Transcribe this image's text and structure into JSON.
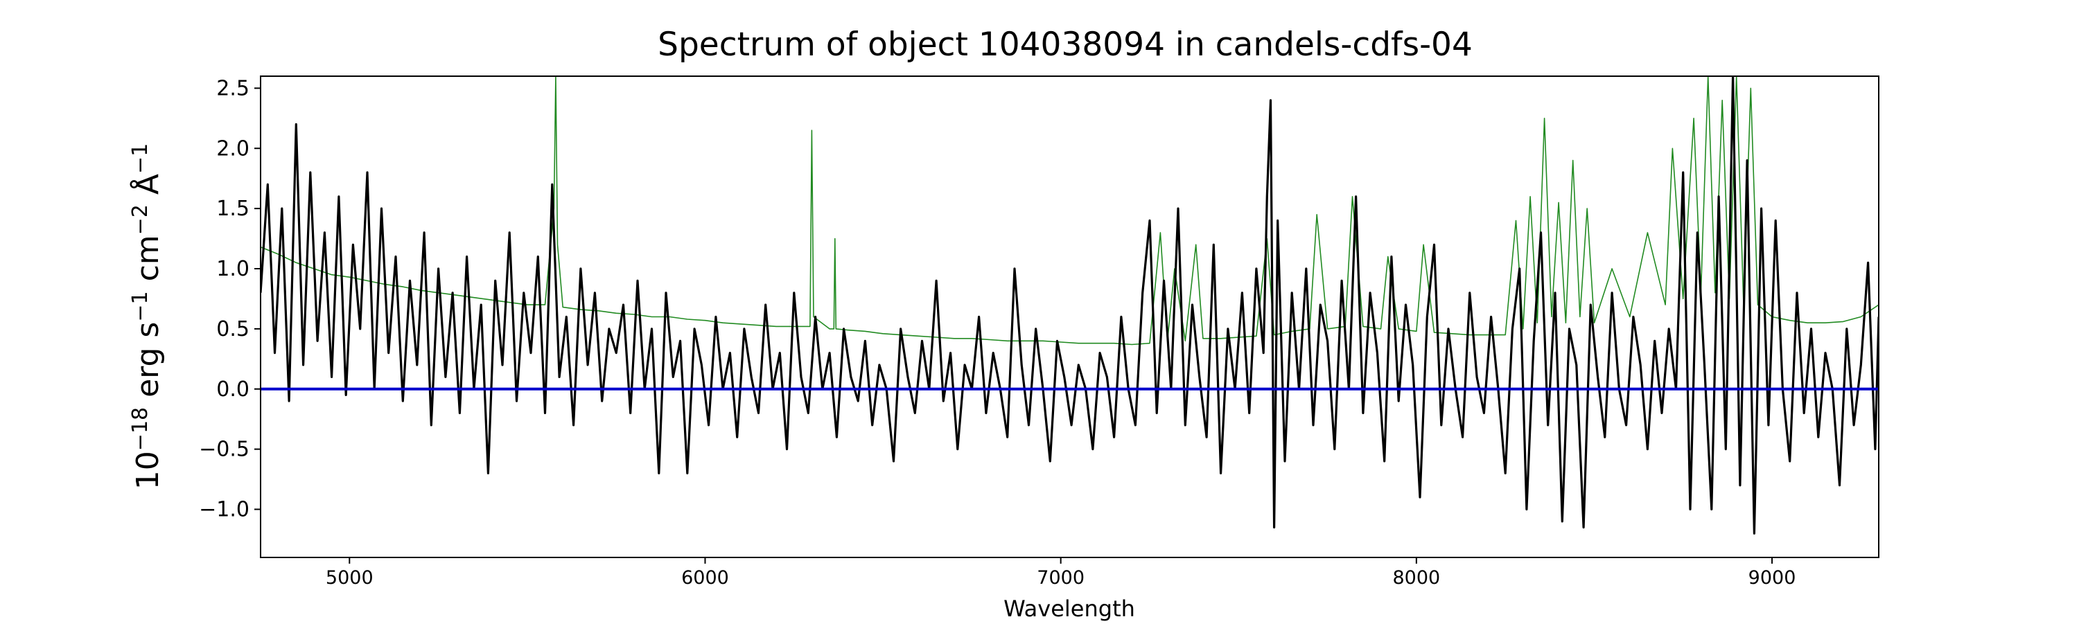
{
  "chart_data": {
    "type": "line",
    "title": "Spectrum of object 104038094 in candels-cdfs-04",
    "xlabel": "Wavelength",
    "ylabel": {
      "parts": [
        {
          "t": "10",
          "sup": false
        },
        {
          "t": "−18",
          "sup": true
        },
        {
          "t": " erg s",
          "sup": false
        },
        {
          "t": "−1",
          "sup": true
        },
        {
          "t": " cm",
          "sup": false
        },
        {
          "t": "−2",
          "sup": true
        },
        {
          "t": " Å",
          "sup": false
        },
        {
          "t": "−1",
          "sup": true
        }
      ]
    },
    "xlim": [
      4750,
      9300
    ],
    "ylim": [
      -1.4,
      2.6
    ],
    "xticks": [
      5000,
      6000,
      7000,
      8000,
      9000
    ],
    "xtick_labels": [
      "5000",
      "6000",
      "7000",
      "8000",
      "9000"
    ],
    "yticks": [
      -1.0,
      -0.5,
      0.0,
      0.5,
      1.0,
      1.5,
      2.0,
      2.5
    ],
    "ytick_labels": [
      "−1.0",
      "−0.5",
      "0.0",
      "0.5",
      "1.0",
      "1.5",
      "2.0",
      "2.5"
    ],
    "grid": false,
    "legend": "none",
    "series": [
      {
        "role": "error",
        "color": "#228b22",
        "x": [
          4750,
          4800,
          4850,
          4900,
          4950,
          5000,
          5050,
          5100,
          5150,
          5200,
          5250,
          5300,
          5350,
          5400,
          5450,
          5500,
          5550,
          5575,
          5580,
          5585,
          5600,
          5650,
          5700,
          5750,
          5800,
          5850,
          5900,
          5950,
          6000,
          6050,
          6100,
          6150,
          6200,
          6250,
          6295,
          6300,
          6305,
          6350,
          6362,
          6365,
          6368,
          6400,
          6450,
          6500,
          6550,
          6600,
          6650,
          6700,
          6750,
          6800,
          6850,
          6900,
          6950,
          7000,
          7050,
          7100,
          7150,
          7200,
          7250,
          7280,
          7300,
          7320,
          7350,
          7380,
          7400,
          7450,
          7500,
          7550,
          7580,
          7600,
          7650,
          7700,
          7720,
          7750,
          7800,
          7820,
          7850,
          7900,
          7920,
          7950,
          8000,
          8020,
          8050,
          8100,
          8150,
          8200,
          8250,
          8280,
          8300,
          8320,
          8340,
          8360,
          8380,
          8400,
          8420,
          8440,
          8460,
          8480,
          8500,
          8550,
          8600,
          8650,
          8700,
          8720,
          8750,
          8780,
          8800,
          8820,
          8840,
          8860,
          8880,
          8900,
          8920,
          8940,
          8960,
          9000,
          9050,
          9100,
          9150,
          9200,
          9250,
          9300
        ],
        "y": [
          1.18,
          1.12,
          1.05,
          1.0,
          0.95,
          0.93,
          0.9,
          0.87,
          0.85,
          0.82,
          0.8,
          0.78,
          0.76,
          0.74,
          0.72,
          0.7,
          0.7,
          1.5,
          2.6,
          1.2,
          0.68,
          0.66,
          0.65,
          0.63,
          0.62,
          0.6,
          0.6,
          0.58,
          0.57,
          0.55,
          0.54,
          0.53,
          0.52,
          0.52,
          0.52,
          2.15,
          0.6,
          0.5,
          0.5,
          1.25,
          0.5,
          0.49,
          0.48,
          0.46,
          0.45,
          0.44,
          0.43,
          0.42,
          0.42,
          0.41,
          0.4,
          0.4,
          0.4,
          0.39,
          0.38,
          0.38,
          0.38,
          0.37,
          0.38,
          1.3,
          0.4,
          1.0,
          0.4,
          1.2,
          0.42,
          0.42,
          0.43,
          0.44,
          1.25,
          0.45,
          0.48,
          0.5,
          1.45,
          0.5,
          0.52,
          1.6,
          0.52,
          0.5,
          1.1,
          0.5,
          0.48,
          1.2,
          0.47,
          0.46,
          0.45,
          0.45,
          0.45,
          1.4,
          0.5,
          1.6,
          0.55,
          2.25,
          0.6,
          1.55,
          0.55,
          1.9,
          0.6,
          1.5,
          0.55,
          1.0,
          0.6,
          1.3,
          0.7,
          2.0,
          0.75,
          2.25,
          0.8,
          2.6,
          0.8,
          2.4,
          0.75,
          2.6,
          0.7,
          2.5,
          0.7,
          0.6,
          0.57,
          0.55,
          0.55,
          0.56,
          0.6,
          0.7
        ]
      },
      {
        "role": "flux",
        "color": "#000000",
        "x": [
          4750,
          4770,
          4790,
          4810,
          4830,
          4850,
          4870,
          4890,
          4910,
          4930,
          4950,
          4970,
          4990,
          5010,
          5030,
          5050,
          5070,
          5090,
          5110,
          5130,
          5150,
          5170,
          5190,
          5210,
          5230,
          5250,
          5270,
          5290,
          5310,
          5330,
          5350,
          5370,
          5390,
          5410,
          5430,
          5450,
          5470,
          5490,
          5510,
          5530,
          5550,
          5570,
          5590,
          5610,
          5630,
          5650,
          5670,
          5690,
          5710,
          5730,
          5750,
          5770,
          5790,
          5810,
          5830,
          5850,
          5870,
          5890,
          5910,
          5930,
          5950,
          5970,
          5990,
          6010,
          6030,
          6050,
          6070,
          6090,
          6110,
          6130,
          6150,
          6170,
          6190,
          6210,
          6230,
          6250,
          6270,
          6290,
          6310,
          6330,
          6350,
          6370,
          6390,
          6410,
          6430,
          6450,
          6470,
          6490,
          6510,
          6530,
          6550,
          6570,
          6590,
          6610,
          6630,
          6650,
          6670,
          6690,
          6710,
          6730,
          6750,
          6770,
          6790,
          6810,
          6830,
          6850,
          6870,
          6890,
          6910,
          6930,
          6950,
          6970,
          6990,
          7010,
          7030,
          7050,
          7070,
          7090,
          7110,
          7130,
          7150,
          7170,
          7190,
          7210,
          7230,
          7250,
          7270,
          7290,
          7310,
          7330,
          7350,
          7370,
          7390,
          7410,
          7430,
          7450,
          7470,
          7490,
          7510,
          7530,
          7550,
          7570,
          7580,
          7590,
          7600,
          7610,
          7630,
          7650,
          7670,
          7690,
          7710,
          7730,
          7750,
          7770,
          7790,
          7810,
          7830,
          7850,
          7870,
          7890,
          7910,
          7930,
          7950,
          7970,
          7990,
          8010,
          8030,
          8050,
          8070,
          8090,
          8110,
          8130,
          8150,
          8170,
          8190,
          8210,
          8230,
          8250,
          8270,
          8290,
          8310,
          8330,
          8350,
          8370,
          8390,
          8410,
          8430,
          8450,
          8470,
          8490,
          8510,
          8530,
          8550,
          8570,
          8590,
          8610,
          8630,
          8650,
          8670,
          8690,
          8710,
          8730,
          8750,
          8770,
          8790,
          8810,
          8830,
          8850,
          8870,
          8890,
          8910,
          8930,
          8950,
          8970,
          8990,
          9010,
          9030,
          9050,
          9070,
          9090,
          9110,
          9130,
          9150,
          9170,
          9190,
          9210,
          9230,
          9250,
          9270,
          9290,
          9300
        ],
        "y": [
          0.8,
          1.7,
          0.3,
          1.5,
          -0.1,
          2.2,
          0.2,
          1.8,
          0.4,
          1.3,
          0.1,
          1.6,
          -0.05,
          1.2,
          0.5,
          1.8,
          0.0,
          1.5,
          0.3,
          1.1,
          -0.1,
          0.9,
          0.2,
          1.3,
          -0.3,
          1.0,
          0.1,
          0.8,
          -0.2,
          1.1,
          0.0,
          0.7,
          -0.7,
          0.9,
          0.2,
          1.3,
          -0.1,
          0.8,
          0.3,
          1.1,
          -0.2,
          1.7,
          0.1,
          0.6,
          -0.3,
          1.0,
          0.2,
          0.8,
          -0.1,
          0.5,
          0.3,
          0.7,
          -0.2,
          0.9,
          0.0,
          0.5,
          -0.7,
          0.8,
          0.1,
          0.4,
          -0.7,
          0.5,
          0.2,
          -0.3,
          0.6,
          0.0,
          0.3,
          -0.4,
          0.5,
          0.1,
          -0.2,
          0.7,
          0.0,
          0.3,
          -0.5,
          0.8,
          0.1,
          -0.2,
          0.6,
          0.0,
          0.3,
          -0.4,
          0.5,
          0.1,
          -0.1,
          0.4,
          -0.3,
          0.2,
          0.0,
          -0.6,
          0.5,
          0.1,
          -0.2,
          0.4,
          0.0,
          0.9,
          -0.1,
          0.3,
          -0.5,
          0.2,
          0.0,
          0.6,
          -0.2,
          0.3,
          0.0,
          -0.4,
          1.0,
          0.2,
          -0.3,
          0.5,
          0.0,
          -0.6,
          0.4,
          0.1,
          -0.3,
          0.2,
          0.0,
          -0.5,
          0.3,
          0.1,
          -0.4,
          0.6,
          0.0,
          -0.3,
          0.8,
          1.4,
          -0.2,
          0.9,
          0.0,
          1.5,
          -0.3,
          0.7,
          0.1,
          -0.4,
          1.2,
          -0.7,
          0.5,
          0.0,
          0.8,
          -0.2,
          1.0,
          0.3,
          1.6,
          2.4,
          -1.15,
          1.4,
          -0.6,
          0.8,
          0.0,
          1.0,
          -0.3,
          0.7,
          0.4,
          -0.5,
          0.9,
          0.0,
          1.6,
          -0.2,
          0.8,
          0.3,
          -0.6,
          1.1,
          -0.1,
          0.7,
          0.2,
          -0.9,
          0.6,
          1.2,
          -0.3,
          0.5,
          0.0,
          -0.4,
          0.8,
          0.1,
          -0.2,
          0.6,
          0.0,
          -0.7,
          0.5,
          1.0,
          -1.0,
          0.4,
          1.3,
          -0.3,
          0.8,
          -1.1,
          0.5,
          0.2,
          -1.15,
          0.7,
          0.1,
          -0.4,
          0.8,
          0.0,
          -0.3,
          0.6,
          0.2,
          -0.5,
          0.4,
          -0.2,
          0.5,
          0.0,
          1.8,
          -1.0,
          1.3,
          0.2,
          -1.0,
          1.6,
          -0.5,
          2.6,
          -0.8,
          1.9,
          -1.2,
          1.5,
          -0.3,
          1.4,
          0.0,
          -0.6,
          0.8,
          -0.2,
          0.5,
          -0.4,
          0.3,
          0.0,
          -0.8,
          0.5,
          -0.3,
          0.2,
          1.05,
          -0.5,
          0.6
        ]
      },
      {
        "role": "zero",
        "color": "#0000cc",
        "x": [
          4750,
          9300
        ],
        "y": [
          0.0,
          0.0
        ]
      }
    ]
  }
}
